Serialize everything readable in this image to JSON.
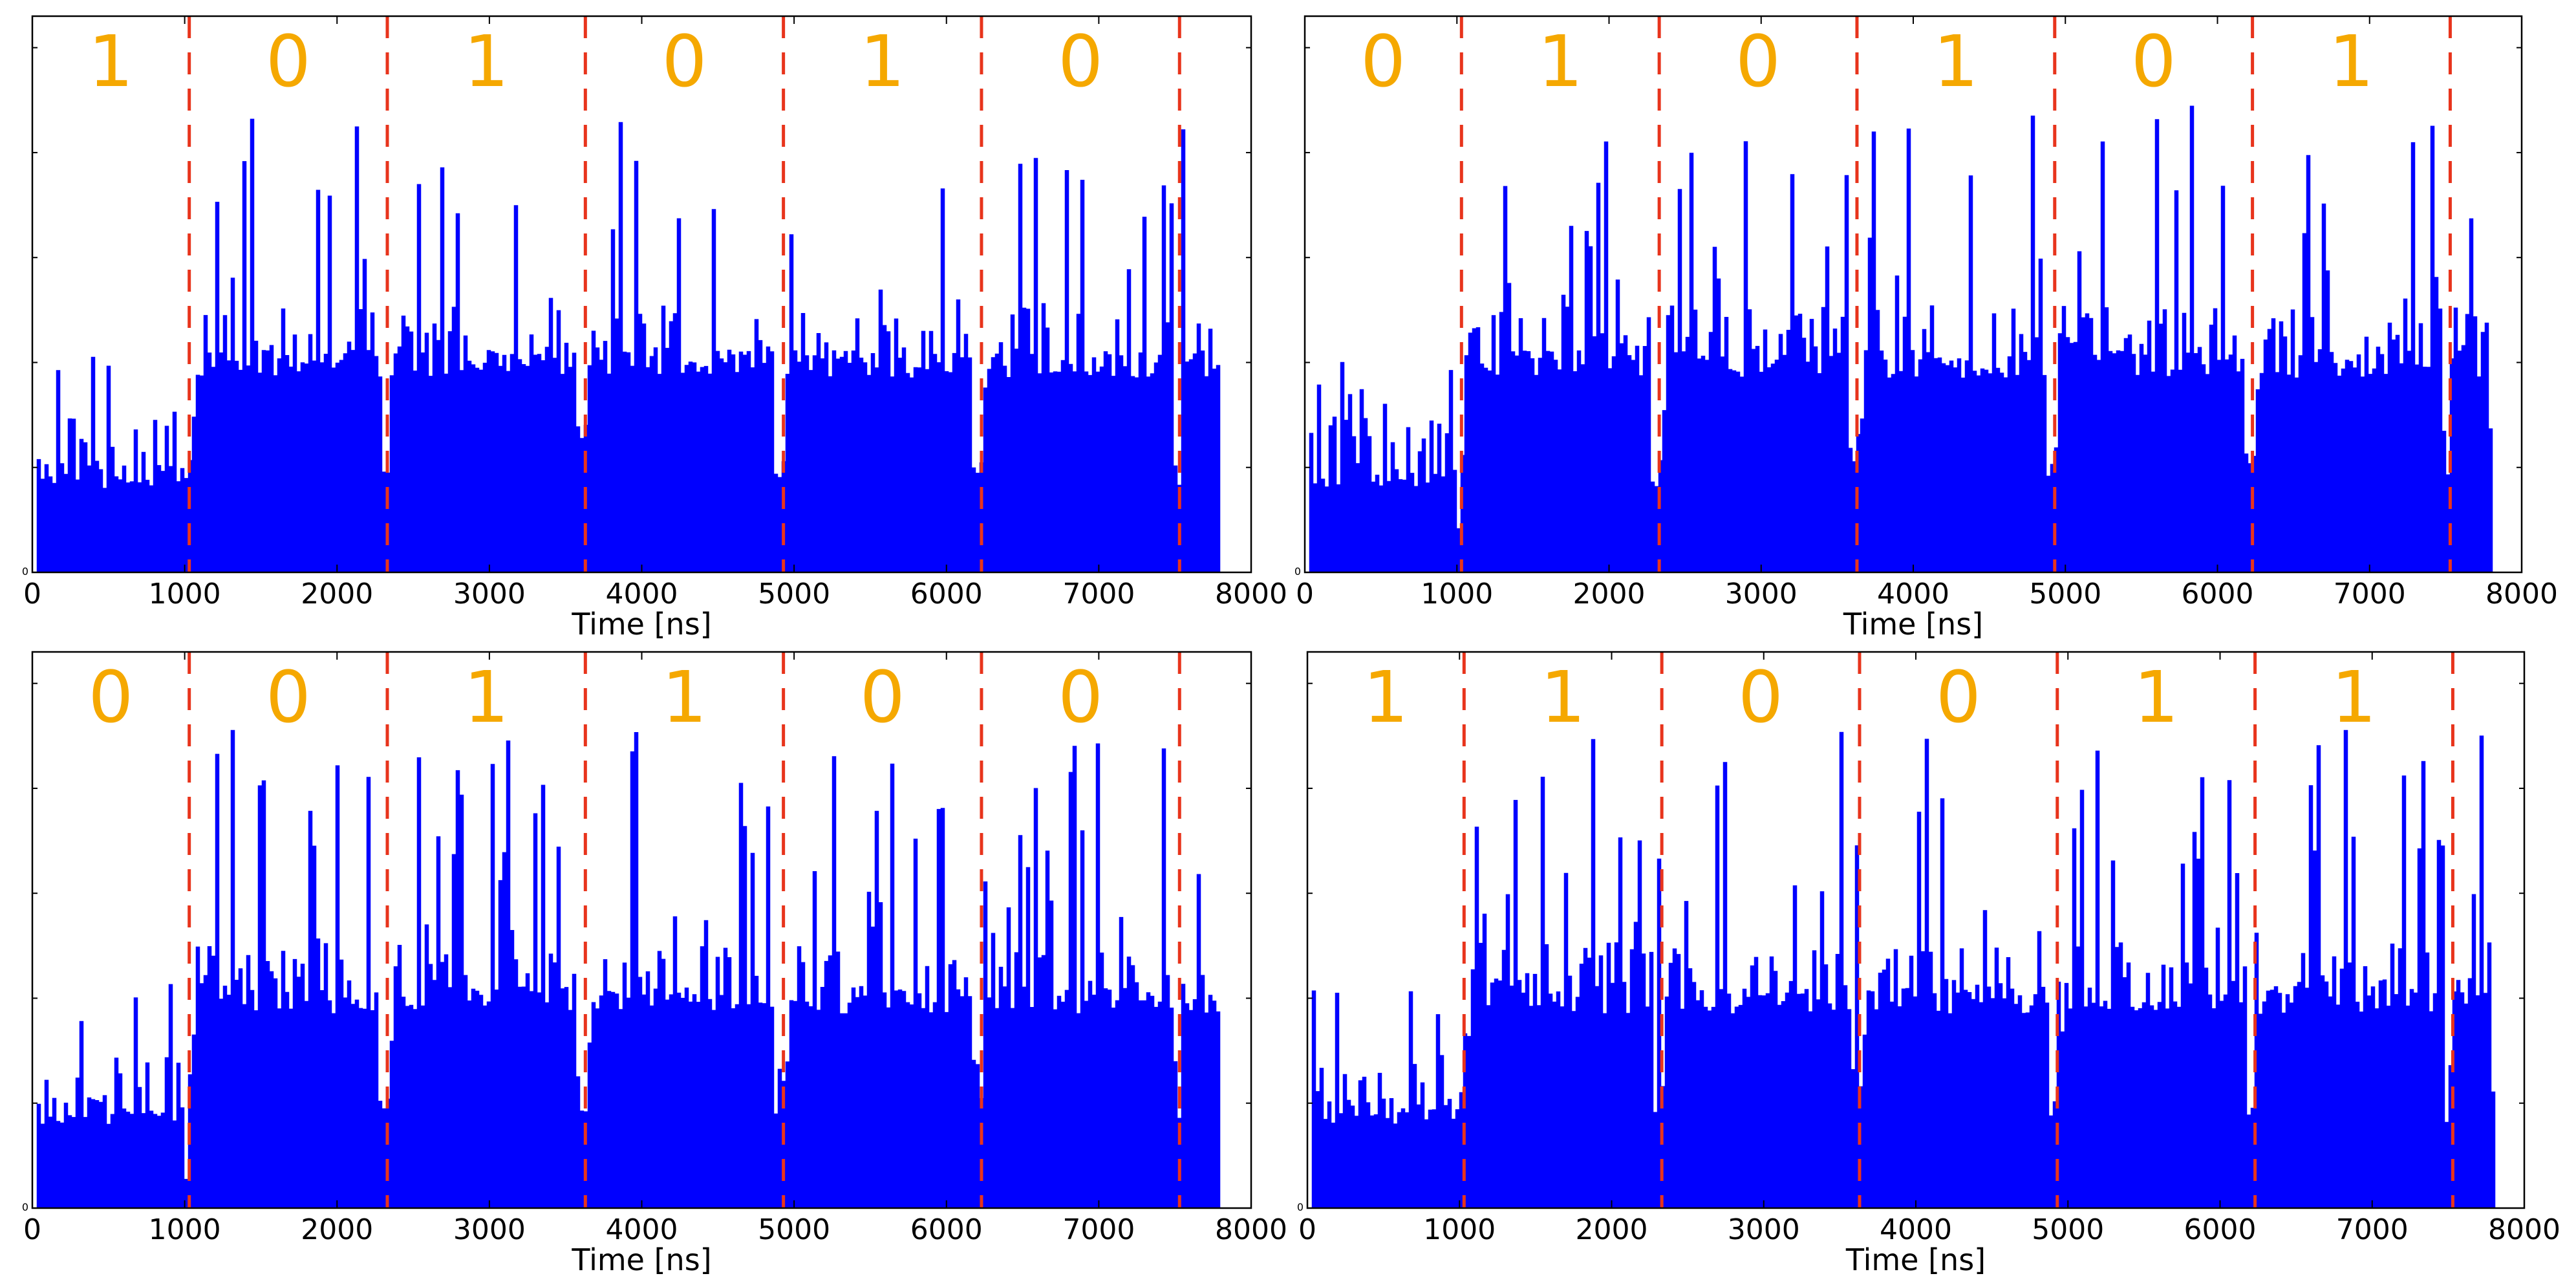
{
  "chart_data": [
    {
      "type": "bar",
      "panel": "top-left",
      "xlabel": "Time [ns]",
      "ylabel": "",
      "xlim": [
        0,
        8000
      ],
      "xticks": [
        0,
        1000,
        2000,
        3000,
        4000,
        5000,
        6000,
        7000,
        8000
      ],
      "yticks_labeled": [
        "0"
      ],
      "data_end_ns": 7800,
      "boundaries_ns": [
        1030,
        2330,
        3630,
        4930,
        6230,
        7530
      ],
      "bits": [
        "1",
        "0",
        "1",
        "0",
        "1",
        "0"
      ],
      "series": [
        {
          "color": "#0000ff"
        }
      ],
      "boundary_color": "#e8341c",
      "grid": false
    },
    {
      "type": "bar",
      "panel": "top-right",
      "xlabel": "Time [ns]",
      "ylabel": "",
      "xlim": [
        0,
        8000
      ],
      "xticks": [
        0,
        1000,
        2000,
        3000,
        4000,
        5000,
        6000,
        7000,
        8000
      ],
      "yticks_labeled": [
        "0"
      ],
      "data_end_ns": 7800,
      "boundaries_ns": [
        1030,
        2330,
        3630,
        4930,
        6230,
        7530
      ],
      "bits": [
        "0",
        "1",
        "0",
        "1",
        "0",
        "1"
      ],
      "series": [
        {
          "color": "#0000ff"
        }
      ],
      "boundary_color": "#e8341c",
      "grid": false
    },
    {
      "type": "bar",
      "panel": "bottom-left",
      "xlabel": "Time [ns]",
      "ylabel": "",
      "xlim": [
        0,
        8000
      ],
      "xticks": [
        0,
        1000,
        2000,
        3000,
        4000,
        5000,
        6000,
        7000,
        8000
      ],
      "yticks_labeled": [
        "0"
      ],
      "data_end_ns": 7800,
      "boundaries_ns": [
        1030,
        2330,
        3630,
        4930,
        6230,
        7530
      ],
      "bits": [
        "0",
        "0",
        "1",
        "1",
        "0",
        "0"
      ],
      "series": [
        {
          "color": "#0000ff"
        }
      ],
      "boundary_color": "#e8341c",
      "grid": false
    },
    {
      "type": "bar",
      "panel": "bottom-right",
      "xlabel": "Time [ns]",
      "ylabel": "",
      "xlim": [
        0,
        8000
      ],
      "xticks": [
        0,
        1000,
        2000,
        3000,
        4000,
        5000,
        6000,
        7000,
        8000
      ],
      "yticks_labeled": [
        "0"
      ],
      "data_end_ns": 7800,
      "boundaries_ns": [
        1030,
        2330,
        3630,
        4930,
        6230,
        7530
      ],
      "bits": [
        "1",
        "1",
        "0",
        "0",
        "1",
        "1"
      ],
      "series": [
        {
          "color": "#0000ff"
        }
      ],
      "boundary_color": "#e8341c",
      "grid": false
    }
  ]
}
